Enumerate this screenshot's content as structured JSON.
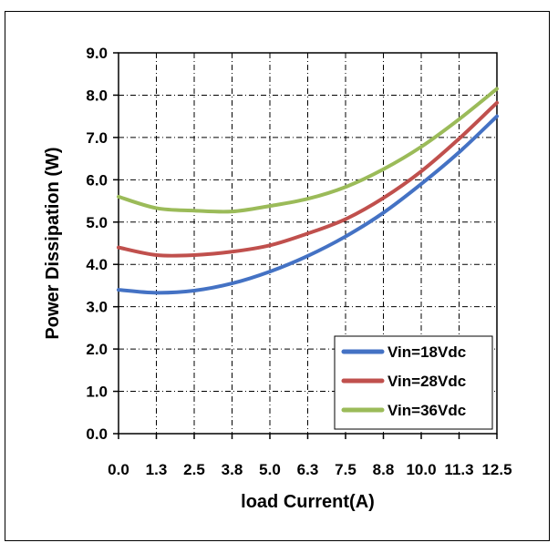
{
  "chart_data": {
    "type": "line",
    "title": "",
    "xlabel": "load Current(A)",
    "ylabel": "Power Dissipation (W)",
    "x_tick_labels": [
      "0.0",
      "1.3",
      "2.5",
      "3.8",
      "5.0",
      "6.3",
      "7.5",
      "8.8",
      "10.0",
      "11.3",
      "12.5"
    ],
    "y_tick_labels": [
      "0.0",
      "1.0",
      "2.0",
      "3.0",
      "4.0",
      "5.0",
      "6.0",
      "7.0",
      "8.0",
      "9.0"
    ],
    "x": [
      0.0,
      1.25,
      2.5,
      3.75,
      5.0,
      6.25,
      7.5,
      8.75,
      10.0,
      11.25,
      12.5
    ],
    "xlim": [
      0,
      12.5
    ],
    "ylim": [
      0,
      9
    ],
    "grid": true,
    "legend_position": "bottom-right",
    "series": [
      {
        "name": "Vin=18Vdc",
        "color": "#4472c4",
        "values": [
          3.4,
          3.33,
          3.38,
          3.55,
          3.83,
          4.2,
          4.66,
          5.22,
          5.9,
          6.65,
          7.5
        ]
      },
      {
        "name": "Vin=28Vdc",
        "color": "#c0504d",
        "values": [
          4.4,
          4.22,
          4.22,
          4.3,
          4.45,
          4.73,
          5.07,
          5.57,
          6.2,
          6.97,
          7.82
        ]
      },
      {
        "name": "Vin=36Vdc",
        "color": "#9bbb59",
        "values": [
          5.6,
          5.33,
          5.27,
          5.25,
          5.38,
          5.55,
          5.83,
          6.25,
          6.78,
          7.43,
          8.15
        ]
      }
    ]
  }
}
